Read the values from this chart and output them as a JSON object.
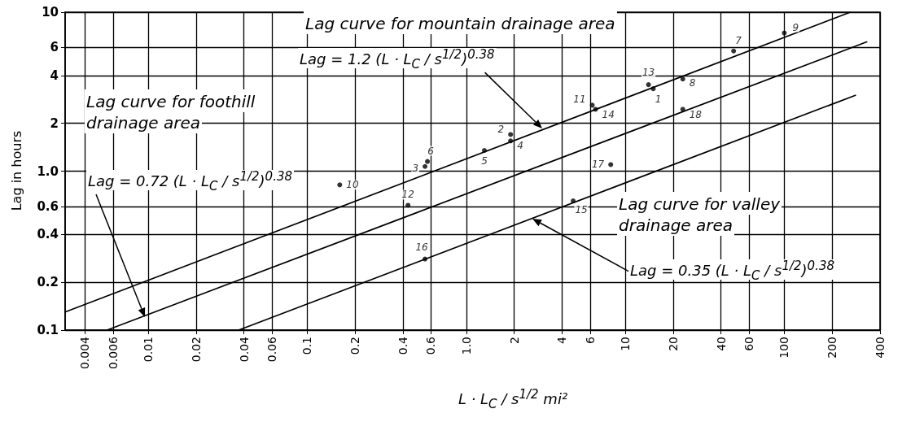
{
  "chart_data": {
    "type": "line",
    "xlabel": "L · L$_{C}$ / s$^{1/2}$   mi²",
    "ylabel": "Lag in hours",
    "annotations": [
      "Lag curve for mountain drainage area",
      "Lag = 1.2 (L · L$_{C}$ / s$^{1/2}$)$^{0.38}$",
      "Lag curve for foothill drainage area",
      "Lag = 0.72 (L · L$_{C}$ / s$^{1/2}$)$^{0.38}$",
      "Lag curve for valley drainage area",
      "Lag = 0.35 (L · L$_{C}$ / s$^{1/2}$)$^{0.38}$"
    ],
    "series": [
      {
        "x": [
          0.003,
          260
        ],
        "values": [
          0.13,
          10
        ],
        "color": "#000000"
      },
      {
        "x": [
          0.0055,
          330
        ],
        "values": [
          0.1,
          6.5
        ],
        "color": "#000000"
      },
      {
        "x": [
          0.037,
          280
        ],
        "values": [
          0.1,
          3.0
        ],
        "color": "#000000"
      },
      {
        "type": "scatter",
        "name": "1",
        "marker": "circle",
        "color": "#000000",
        "x": [
          15
        ],
        "values": [
          3.3
        ]
      },
      {
        "type": "scatter",
        "name": "2",
        "marker": "circle",
        "color": "#000000",
        "x": [
          1.9
        ],
        "values": [
          1.7
        ]
      },
      {
        "type": "scatter",
        "name": "3",
        "marker": "circle",
        "color": "#000000",
        "x": [
          0.55
        ],
        "values": [
          1.07
        ]
      },
      {
        "type": "scatter",
        "name": "4",
        "marker": "circle",
        "color": "#000000",
        "x": [
          1.9
        ],
        "values": [
          1.55
        ]
      },
      {
        "type": "scatter",
        "name": "5",
        "marker": "circle",
        "color": "#000000",
        "x": [
          1.3
        ],
        "values": [
          1.35
        ]
      },
      {
        "type": "scatter",
        "name": "6",
        "marker": "circle",
        "color": "#000000",
        "x": [
          0.57
        ],
        "values": [
          1.15
        ]
      },
      {
        "type": "scatter",
        "name": "7",
        "marker": "circle",
        "color": "#000000",
        "x": [
          48
        ],
        "values": [
          5.7
        ]
      },
      {
        "type": "scatter",
        "name": "8",
        "marker": "circle",
        "color": "#000000",
        "x": [
          23
        ],
        "values": [
          3.8
        ]
      },
      {
        "type": "scatter",
        "name": "9",
        "marker": "circle",
        "color": "#000000",
        "x": [
          100
        ],
        "values": [
          7.4
        ]
      },
      {
        "type": "scatter",
        "name": "10",
        "marker": "circle",
        "color": "#000000",
        "x": [
          0.16
        ],
        "values": [
          0.82
        ]
      },
      {
        "type": "scatter",
        "name": "11",
        "marker": "circle",
        "color": "#000000",
        "x": [
          6.2
        ],
        "values": [
          2.6
        ]
      },
      {
        "type": "scatter",
        "name": "12",
        "marker": "circle",
        "color": "#000000",
        "x": [
          0.43
        ],
        "values": [
          0.61
        ]
      },
      {
        "type": "scatter",
        "name": "13",
        "marker": "circle",
        "color": "#000000",
        "x": [
          14
        ],
        "values": [
          3.5
        ]
      },
      {
        "type": "scatter",
        "name": "14",
        "marker": "circle",
        "color": "#000000",
        "x": [
          6.5
        ],
        "values": [
          2.45
        ]
      },
      {
        "type": "scatter",
        "name": "15",
        "marker": "circle",
        "color": "#000000",
        "x": [
          4.7
        ],
        "values": [
          0.65
        ]
      },
      {
        "type": "scatter",
        "name": "16",
        "marker": "circle",
        "color": "#000000",
        "x": [
          0.55
        ],
        "values": [
          0.28
        ]
      },
      {
        "type": "scatter",
        "name": "17",
        "marker": "circle",
        "color": "#000000",
        "x": [
          8.1
        ],
        "values": [
          1.1
        ]
      },
      {
        "type": "scatter",
        "name": "18",
        "marker": "circle",
        "color": "#000000",
        "x": [
          23
        ],
        "values": [
          2.45
        ]
      }
    ],
    "xlim": [
      0.003,
      400
    ],
    "ylim": [
      0.1,
      10
    ],
    "xticks": [
      0.004,
      0.006,
      0.01,
      0.02,
      0.04,
      0.06,
      0.1,
      0.2,
      0.4,
      0.6,
      {
        "value": 1,
        "label": "1.0"
      },
      2,
      4,
      6,
      10,
      20,
      40,
      60,
      100,
      200,
      400
    ],
    "yticks": [
      0.1,
      0.2,
      0.4,
      0.6,
      {
        "value": 1,
        "label": "1.0"
      },
      2,
      4,
      6,
      10
    ],
    "log": "xy",
    "grid": true
  }
}
